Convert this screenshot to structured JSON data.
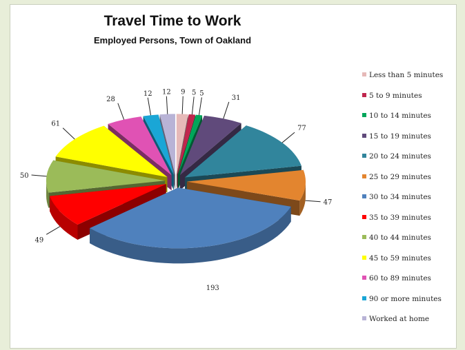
{
  "chart_data": {
    "type": "pie",
    "title": "Travel Time to Work",
    "subtitle": "Employed Persons, Town of Oakland",
    "three_d": true,
    "exploded": true,
    "legend_position": "right",
    "slices": [
      {
        "label": "Less than 5 minutes",
        "value": 9,
        "color": "#e6b9b8"
      },
      {
        "label": "5 to 9 minutes",
        "value": 5,
        "color": "#c0264d"
      },
      {
        "label": "10 to 14 minutes",
        "value": 5,
        "color": "#00a65a"
      },
      {
        "label": "15 to 19 minutes",
        "value": 31,
        "color": "#604a7b"
      },
      {
        "label": "20 to 24 minutes",
        "value": 77,
        "color": "#31859c"
      },
      {
        "label": "25 to 29 minutes",
        "value": 47,
        "color": "#e3852f"
      },
      {
        "label": "30 to 34 minutes",
        "value": 193,
        "color": "#4f81bd"
      },
      {
        "label": "35 to 39 minutes",
        "value": 49,
        "color": "#ff0000"
      },
      {
        "label": "40 to 44 minutes",
        "value": 50,
        "color": "#9bbb59"
      },
      {
        "label": "45 to 59 minutes",
        "value": 61,
        "color": "#ffff00"
      },
      {
        "label": "60 to 89 minutes",
        "value": 28,
        "color": "#e052b4"
      },
      {
        "label": "90 or more minutes",
        "value": 12,
        "color": "#1aa6d6"
      },
      {
        "label": "Worked at home",
        "value": 12,
        "color": "#b8b3d6"
      }
    ]
  }
}
